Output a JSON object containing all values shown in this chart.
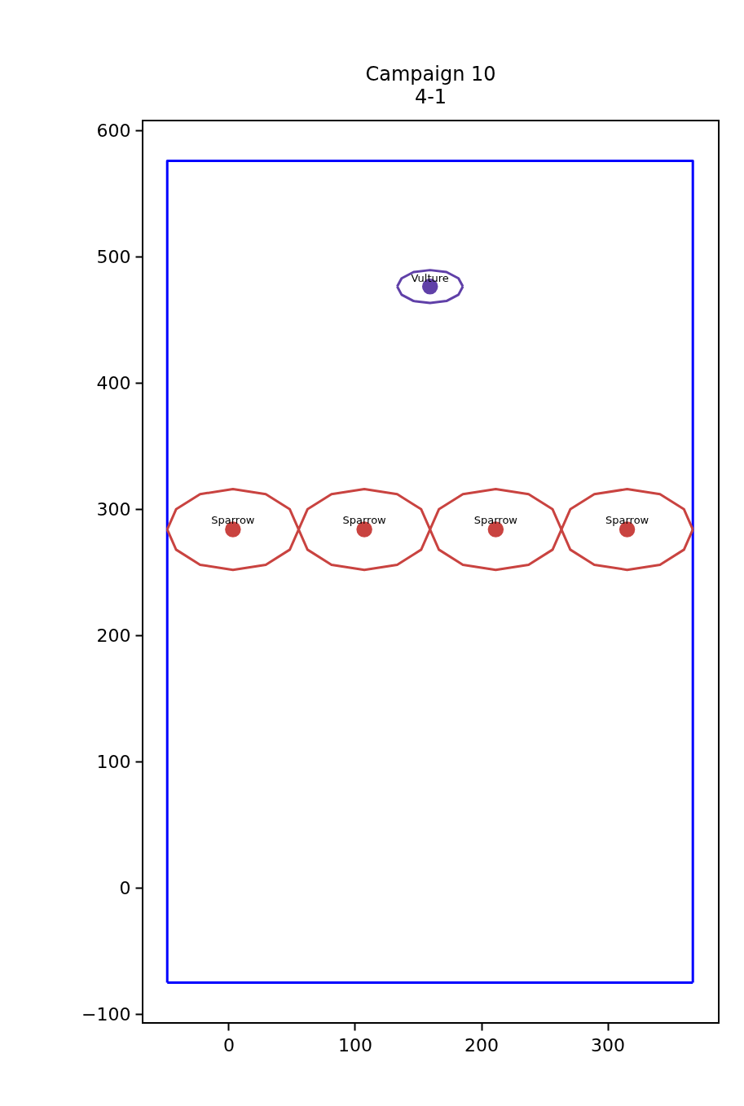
{
  "chart_data": {
    "type": "scatter",
    "title": "Campaign 10",
    "subtitle": "4-1",
    "xlim": [
      -68,
      388
    ],
    "ylim": [
      -107,
      608
    ],
    "xticks": [
      0,
      100,
      200,
      300
    ],
    "yticks": [
      {
        "value": -100,
        "label": "−100"
      },
      0,
      100,
      200,
      300,
      400,
      500,
      600
    ],
    "grid": false,
    "series": [
      {
        "type": "line",
        "marker": "none",
        "color": "#0000ff",
        "x": [
          -48.5,
          -48.5,
          367.5,
          367.5
        ],
        "values": [
          -75,
          576,
          576,
          -75
        ]
      },
      {
        "type": "line",
        "marker": "none",
        "color": "#0000ff",
        "x": [
          -48.5,
          367.5
        ],
        "values": [
          -75,
          -75
        ]
      },
      {
        "type": "line",
        "marker": "none",
        "color": "#c94340",
        "x": [
          -48.5,
          -41.5,
          -22.5,
          3.5,
          29.5,
          48.5,
          55.5,
          62.5,
          81.5,
          107.5,
          133.5,
          152.5,
          159.5,
          166.5,
          185.5,
          211.5,
          237.5,
          256.5,
          263.5,
          270.5,
          289.5,
          315.5,
          341.5,
          360.5,
          367.5
        ],
        "values": [
          284,
          300,
          312,
          316,
          312,
          300,
          284,
          300,
          312,
          316,
          312,
          300,
          284,
          300,
          312,
          316,
          312,
          300,
          284,
          300,
          312,
          316,
          312,
          300,
          284
        ]
      },
      {
        "type": "line",
        "marker": "none",
        "color": "#c94340",
        "x": [
          -48.5,
          -41.5,
          -22.5,
          3.5,
          29.5,
          48.5,
          55.5,
          62.5,
          81.5,
          107.5,
          133.5,
          152.5,
          159.5,
          166.5,
          185.5,
          211.5,
          237.5,
          256.5,
          263.5,
          270.5,
          289.5,
          315.5,
          341.5,
          360.5,
          367.5
        ],
        "values": [
          284,
          268,
          256,
          252,
          256,
          268,
          284,
          268,
          256,
          252,
          256,
          268,
          284,
          268,
          256,
          252,
          256,
          268,
          284,
          268,
          256,
          252,
          256,
          268,
          284
        ]
      },
      {
        "type": "line",
        "marker": "none",
        "color": "#6040a8",
        "x": [
          133.5,
          137,
          146.5,
          159.5,
          172.5,
          182,
          185.5
        ],
        "values": [
          476.5,
          483,
          488,
          489.5,
          488,
          483,
          476.5
        ]
      },
      {
        "type": "line",
        "marker": "none",
        "color": "#6040a8",
        "x": [
          133.5,
          137,
          146.5,
          159.5,
          172.5,
          182,
          185.5
        ],
        "values": [
          476.5,
          470,
          465,
          463.5,
          465,
          470,
          476.5
        ]
      },
      {
        "type": "scatter",
        "marker": "circle",
        "color": "#c94340",
        "x": [
          3.5,
          107.5,
          211.5,
          315.5
        ],
        "values": [
          284,
          284,
          284,
          284
        ]
      },
      {
        "type": "scatter",
        "marker": "circle",
        "color": "#6040a8",
        "x": [
          159.5
        ],
        "values": [
          476.5
        ]
      }
    ],
    "annotations": [
      {
        "text": "Sparrow",
        "x": 3.5,
        "y": 291
      },
      {
        "text": "Sparrow",
        "x": 107.5,
        "y": 291
      },
      {
        "text": "Sparrow",
        "x": 211.5,
        "y": 291
      },
      {
        "text": "Sparrow",
        "x": 315.5,
        "y": 291
      },
      {
        "text": "Vulture",
        "x": 159.5,
        "y": 483
      }
    ]
  }
}
